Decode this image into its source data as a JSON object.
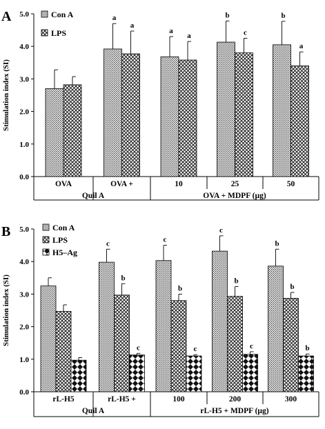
{
  "chart_data": [
    {
      "type": "bar",
      "panel": "A",
      "ylabel": "Stimulation index (SI)",
      "ylim": [
        0,
        5
      ],
      "yticks": [
        "0.0",
        "1.0",
        "2.0",
        "3.0",
        "4.0",
        "5.0"
      ],
      "grid": false,
      "legend_position": "top-left",
      "categories": [
        "OVA",
        "OVA + Quil A",
        "10",
        "25",
        "50"
      ],
      "category_labels": [
        {
          "line1": "OVA",
          "line2": ""
        },
        {
          "line1": "OVA +",
          "line2": "Quil A"
        },
        {
          "line1": "10",
          "line2": ""
        },
        {
          "line1": "25",
          "line2": ""
        },
        {
          "line1": "50",
          "line2": ""
        }
      ],
      "group_label": "OVA + MDPF (µg)",
      "series": [
        {
          "name": "Con A",
          "pattern": "dots",
          "values": [
            2.7,
            3.92,
            3.68,
            4.13,
            4.05
          ],
          "errors": [
            0.58,
            0.78,
            0.62,
            0.65,
            0.72
          ],
          "letters": [
            "",
            "a",
            "a",
            "b",
            "b"
          ]
        },
        {
          "name": "LPS",
          "pattern": "check",
          "values": [
            2.82,
            3.77,
            3.58,
            3.8,
            3.4
          ],
          "errors": [
            0.25,
            0.7,
            0.57,
            0.45,
            0.43
          ],
          "letters": [
            "",
            "a",
            "a",
            "c",
            "a"
          ]
        }
      ]
    },
    {
      "type": "bar",
      "panel": "B",
      "ylabel": "Stimulation index (SI)",
      "ylim": [
        0,
        5
      ],
      "yticks": [
        "0.0",
        "1.0",
        "2.0",
        "3.0",
        "4.0",
        "5.0"
      ],
      "grid": false,
      "legend_position": "top-left",
      "categories": [
        "rL-H5",
        "rL-H5 + Quil A",
        "100",
        "200",
        "300"
      ],
      "category_labels": [
        {
          "line1": "rL-H5",
          "line2": ""
        },
        {
          "line1": "rL-H5 +",
          "line2": "Quil A"
        },
        {
          "line1": "100",
          "line2": ""
        },
        {
          "line1": "200",
          "line2": ""
        },
        {
          "line1": "300",
          "line2": ""
        }
      ],
      "group_label": "rL-H5 + MDPF (µg)",
      "series": [
        {
          "name": "Con A",
          "pattern": "dots",
          "values": [
            3.25,
            3.98,
            4.03,
            4.32,
            3.86
          ],
          "errors": [
            0.25,
            0.4,
            0.47,
            0.47,
            0.52
          ],
          "letters": [
            "",
            "c",
            "c",
            "c",
            "b"
          ]
        },
        {
          "name": "LPS",
          "pattern": "check",
          "values": [
            2.47,
            2.97,
            2.8,
            2.93,
            2.87
          ],
          "errors": [
            0.2,
            0.35,
            0.2,
            0.3,
            0.18
          ],
          "letters": [
            "",
            "b",
            "b",
            "b",
            "b"
          ]
        },
        {
          "name": "H5–Ag",
          "pattern": "diamond",
          "values": [
            0.97,
            1.13,
            1.1,
            1.15,
            1.1
          ],
          "errors": [
            0.08,
            0.05,
            0.04,
            0.08,
            0.06
          ],
          "letters": [
            "",
            "c",
            "c",
            "c",
            "b"
          ]
        }
      ]
    }
  ]
}
